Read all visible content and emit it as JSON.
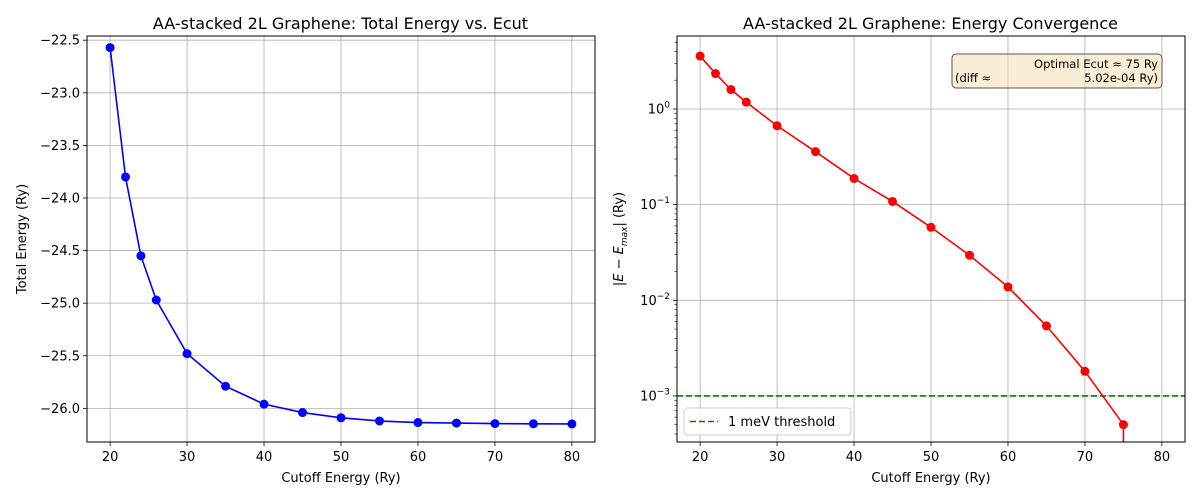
{
  "chart_data": [
    {
      "type": "line",
      "title": "AA-stacked 2L Graphene: Total Energy vs. Ecut",
      "xlabel": "Cutoff Energy (Ry)",
      "ylabel": "Total Energy (Ry)",
      "xlim": [
        17,
        83
      ],
      "ylim": [
        -26.32,
        -22.46
      ],
      "xticks": [
        20,
        30,
        40,
        50,
        60,
        70,
        80
      ],
      "yticks": [
        -22.5,
        -23.0,
        -23.5,
        -24.0,
        -24.5,
        -25.0,
        -25.5,
        -26.0
      ],
      "ytick_labels": [
        "−22.5",
        "−23.0",
        "−23.5",
        "−24.0",
        "−24.5",
        "−25.0",
        "−25.5",
        "−26.0"
      ],
      "grid": true,
      "series": [
        {
          "color": "#0000ff",
          "marker": "circle",
          "x": [
            20,
            22,
            24,
            26,
            30,
            35,
            40,
            45,
            50,
            55,
            60,
            65,
            70,
            75,
            80
          ],
          "y": [
            -22.57,
            -23.8,
            -24.55,
            -24.97,
            -25.48,
            -25.79,
            -25.96,
            -26.04,
            -26.09,
            -26.12,
            -26.135,
            -26.14,
            -26.145,
            -26.147,
            -26.148
          ]
        }
      ]
    },
    {
      "type": "line",
      "title": "AA-stacked 2L Graphene: Energy Convergence",
      "xlabel": "Cutoff Energy (Ry)",
      "ylabel": "|E − E",
      "ylabel_sub": "max",
      "ylabel_tail": "| (Ry)",
      "yscale": "log",
      "xlim": [
        17,
        83
      ],
      "ylim": [
        0.00033,
        5.8
      ],
      "xticks": [
        20,
        30,
        40,
        50,
        60,
        70,
        80
      ],
      "yticks": [
        0.001,
        0.01,
        0.1,
        1
      ],
      "ytick_exponents": [
        "−3",
        "−2",
        "−1",
        "0"
      ],
      "grid": true,
      "legend": "lower-left",
      "annotation": {
        "line1": "Optimal Ecut ≈ 75 Ry",
        "line2_left": "(diff ≈",
        "line2_right": "5.02e-04 Ry)",
        "placement": "top-right"
      },
      "threshold": {
        "name": "1 meV threshold",
        "value": 0.001,
        "color": "#008000",
        "style": "dashed"
      },
      "series": [
        {
          "color": "#ff0000",
          "marker": "circle",
          "x": [
            20,
            22,
            24,
            26,
            30,
            35,
            40,
            45,
            50,
            55,
            60,
            65,
            70,
            75
          ],
          "y": [
            3.58,
            2.35,
            1.6,
            1.18,
            0.668,
            0.358,
            0.188,
            0.108,
            0.058,
            0.0296,
            0.0138,
            0.0054,
            0.00181,
            0.000502
          ]
        }
      ]
    }
  ]
}
